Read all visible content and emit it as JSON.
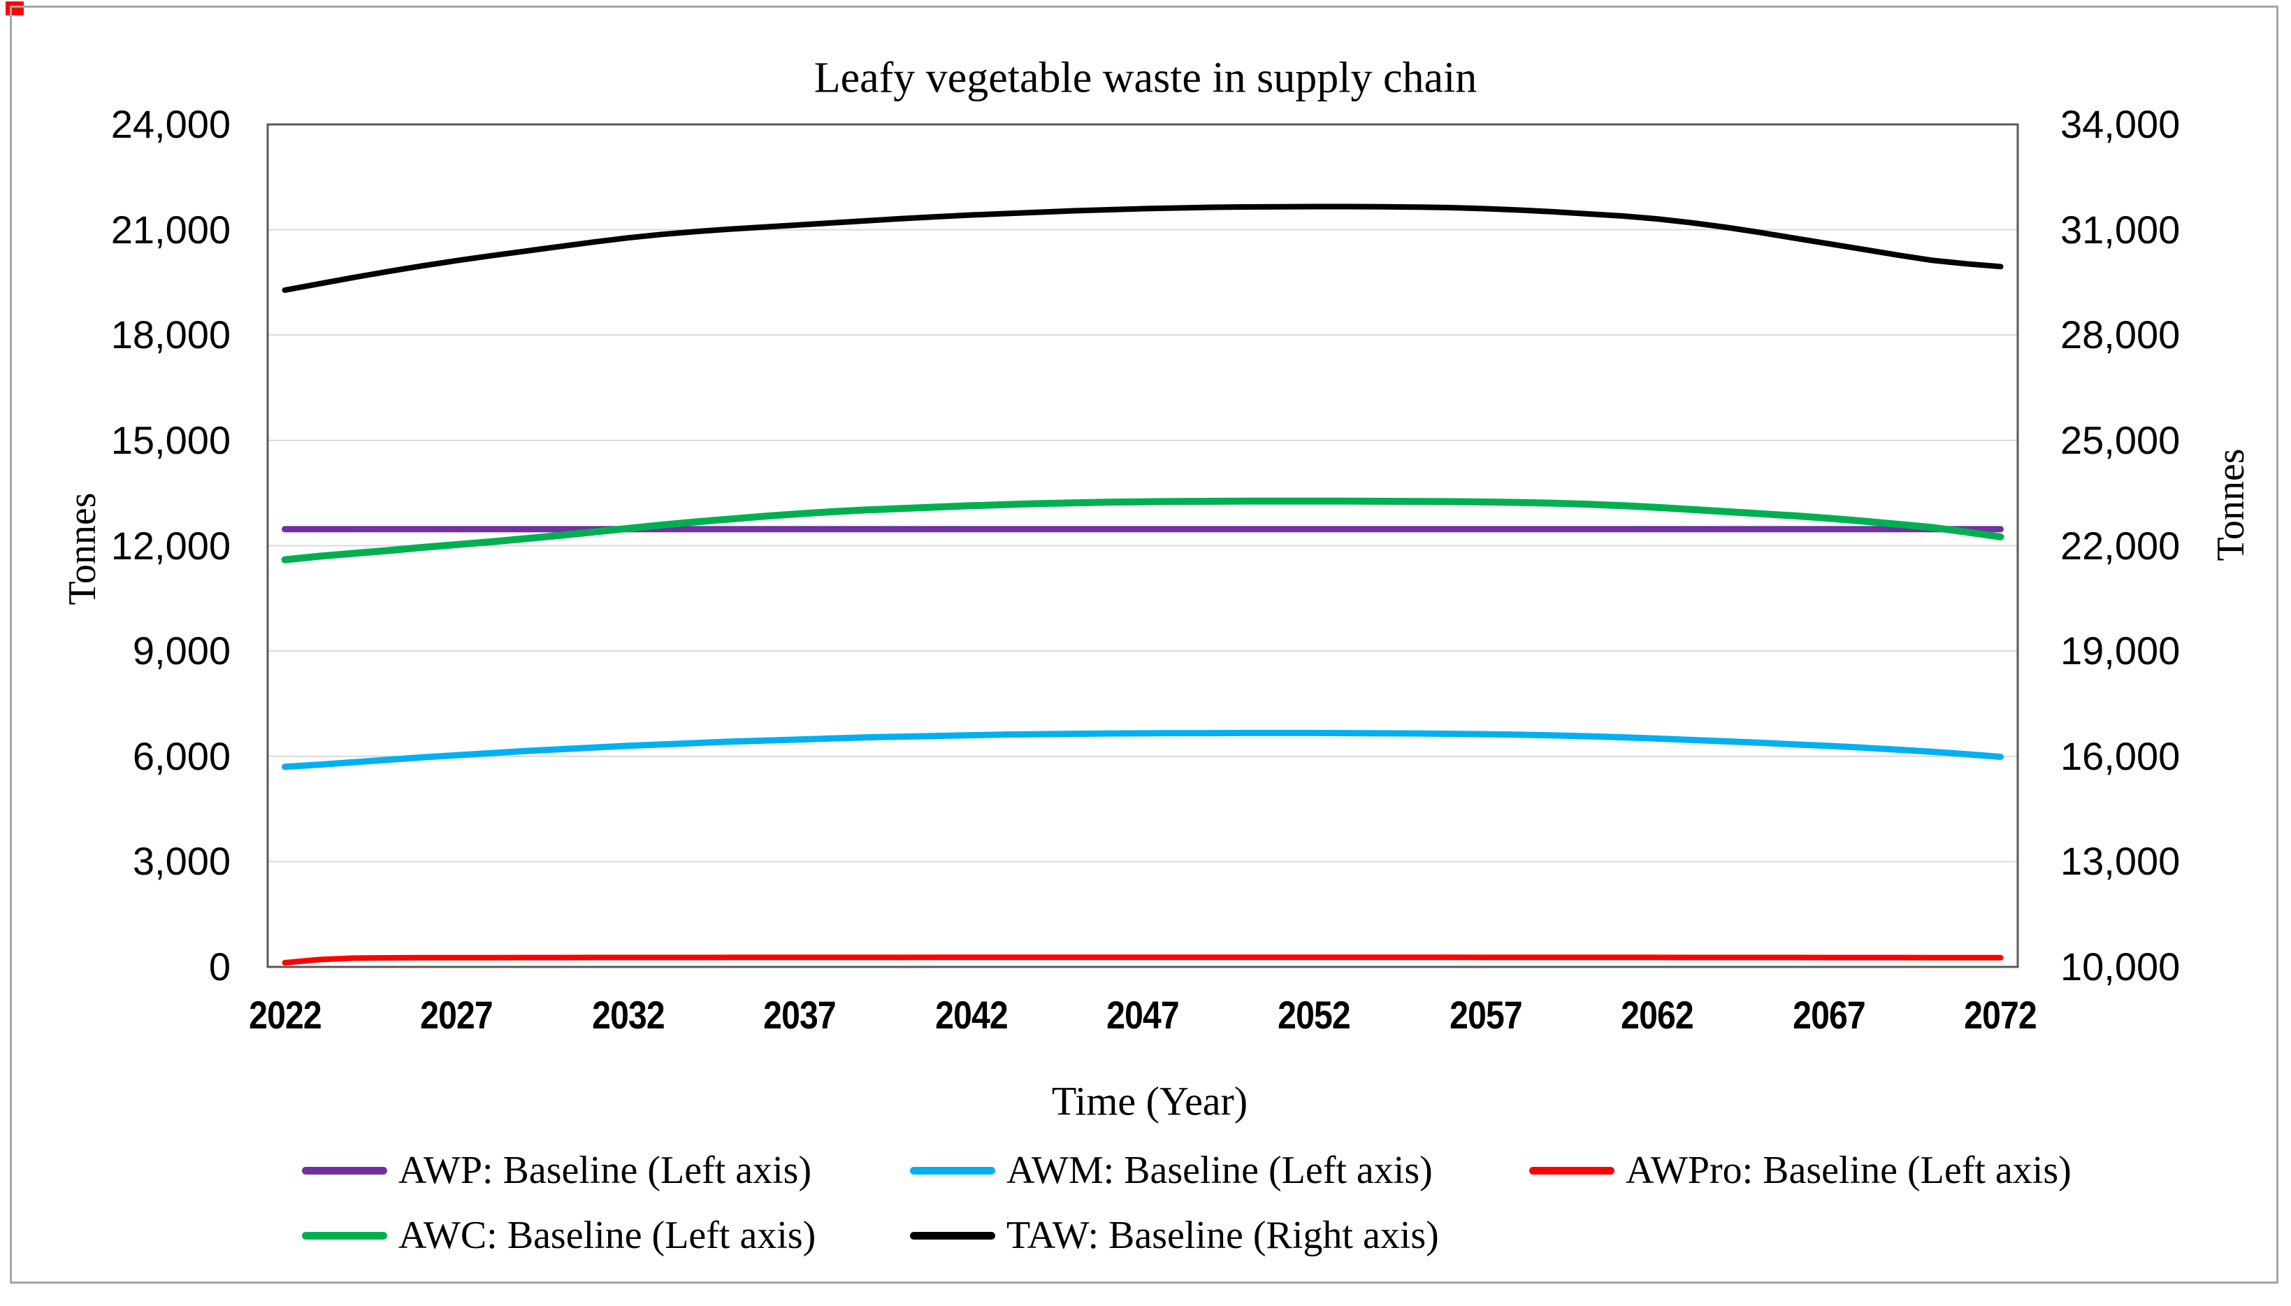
{
  "colors": {
    "gridline": "#D9D9D9",
    "plot_border": "#595959",
    "frame": "#A6A6A6",
    "corner_mark": "#FF0000"
  },
  "chart_data": {
    "type": "line",
    "title": "Leafy vegetable waste in supply chain",
    "grid": true,
    "legend_position": "bottom",
    "x_axis": {
      "title": "Time (Year)",
      "start_year": 2022,
      "end_year": 2072,
      "tick_labels": [
        "2022",
        "2027",
        "2032",
        "2037",
        "2042",
        "2047",
        "2052",
        "2057",
        "2062",
        "2067",
        "2072"
      ]
    },
    "left_axis": {
      "title": "Tonnes",
      "min": 0,
      "max": 24000,
      "step": 3000,
      "tick_labels": [
        "0",
        "3,000",
        "6,000",
        "9,000",
        "12,000",
        "15,000",
        "18,000",
        "21,000",
        "24,000"
      ]
    },
    "right_axis": {
      "title": "Tonnes",
      "min": 10000,
      "max": 34000,
      "step": 3000,
      "tick_labels": [
        "10,000",
        "13,000",
        "16,000",
        "19,000",
        "22,000",
        "25,000",
        "28,000",
        "31,000",
        "34,000"
      ]
    },
    "legend": {
      "rows": [
        [
          0,
          1,
          2
        ],
        [
          3,
          4
        ]
      ]
    },
    "series": [
      {
        "id": "awp",
        "name": "AWP: Baseline (Left axis)",
        "axis": "left",
        "color": "#7030A0",
        "values": [
          12470,
          12470,
          12470,
          12470,
          12470,
          12470,
          12470,
          12470,
          12470,
          12470,
          12470,
          12470,
          12470,
          12470,
          12470,
          12470,
          12470,
          12470,
          12470,
          12470,
          12470,
          12470,
          12470,
          12470,
          12470,
          12470,
          12470,
          12470,
          12470,
          12470,
          12470,
          12470,
          12470,
          12470,
          12470,
          12470,
          12470,
          12470,
          12470,
          12470,
          12470,
          12470,
          12470,
          12470,
          12470,
          12470,
          12470,
          12470,
          12470,
          12470,
          12470
        ]
      },
      {
        "id": "awm",
        "name": "AWM: Baseline (Left axis)",
        "axis": "left",
        "color": "#00B0F0",
        "values": [
          5700,
          5760,
          5830,
          5900,
          5970,
          6030,
          6090,
          6150,
          6200,
          6250,
          6300,
          6340,
          6380,
          6420,
          6450,
          6480,
          6510,
          6540,
          6560,
          6580,
          6600,
          6620,
          6630,
          6640,
          6650,
          6655,
          6660,
          6660,
          6665,
          6665,
          6665,
          6660,
          6655,
          6650,
          6640,
          6630,
          6615,
          6595,
          6570,
          6540,
          6505,
          6465,
          6425,
          6385,
          6340,
          6295,
          6245,
          6190,
          6130,
          6060,
          5985
        ]
      },
      {
        "id": "awpro",
        "name": "AWPro: Baseline (Left axis)",
        "axis": "left",
        "color": "#FF0000",
        "values": [
          120,
          210,
          250,
          258,
          262,
          264,
          265,
          266,
          267,
          268,
          268,
          269,
          269,
          270,
          270,
          270,
          271,
          271,
          271,
          272,
          272,
          272,
          272,
          273,
          273,
          273,
          273,
          273,
          273,
          273,
          273,
          272,
          272,
          272,
          272,
          271,
          271,
          271,
          270,
          270,
          270,
          269,
          269,
          268,
          268,
          267,
          267,
          266,
          265,
          264,
          263
        ]
      },
      {
        "id": "awc",
        "name": "AWC: Baseline (Left axis)",
        "axis": "left",
        "color": "#00B050",
        "values": [
          11600,
          11700,
          11780,
          11860,
          11950,
          12030,
          12110,
          12200,
          12290,
          12390,
          12490,
          12590,
          12680,
          12760,
          12840,
          12910,
          12970,
          13020,
          13060,
          13100,
          13140,
          13170,
          13200,
          13220,
          13240,
          13250,
          13260,
          13265,
          13270,
          13270,
          13270,
          13270,
          13265,
          13260,
          13255,
          13245,
          13230,
          13210,
          13180,
          13140,
          13090,
          13030,
          12970,
          12910,
          12850,
          12780,
          12700,
          12610,
          12520,
          12390,
          12250
        ]
      },
      {
        "id": "taw",
        "name": "TAW: Baseline (Right axis)",
        "axis": "right",
        "color": "#000000",
        "values": [
          29280,
          29460,
          29640,
          29810,
          29970,
          30120,
          30260,
          30390,
          30520,
          30650,
          30770,
          30870,
          30950,
          31020,
          31080,
          31140,
          31200,
          31260,
          31320,
          31370,
          31420,
          31460,
          31500,
          31540,
          31570,
          31600,
          31620,
          31640,
          31650,
          31655,
          31660,
          31660,
          31655,
          31645,
          31630,
          31600,
          31560,
          31510,
          31450,
          31390,
          31310,
          31200,
          31070,
          30920,
          30760,
          30600,
          30440,
          30280,
          30130,
          30030,
          29950
        ]
      }
    ]
  }
}
